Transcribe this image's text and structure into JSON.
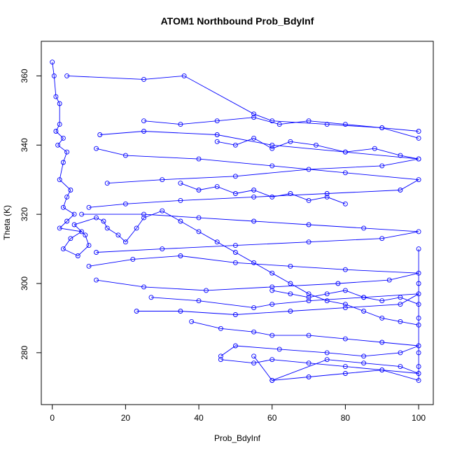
{
  "chart_data": {
    "type": "line",
    "title": "ATOM1 Northbound Prob_BdyInf",
    "xlabel": "Prob_BdyInf",
    "ylabel": "Theta (K)",
    "xlim": [
      -3,
      104
    ],
    "ylim": [
      265,
      370
    ],
    "xticks": [
      0,
      20,
      40,
      60,
      80,
      100
    ],
    "yticks": [
      280,
      300,
      320,
      340,
      360
    ],
    "grid": false,
    "legend": "none",
    "marker": "open-circle",
    "color": "#0000ff",
    "series": [
      {
        "x": [
          0,
          0.5,
          1,
          2,
          2,
          1,
          3,
          1.5,
          4,
          3,
          2,
          5,
          4,
          3,
          6,
          4,
          2,
          8,
          5,
          3,
          7,
          10,
          9,
          6,
          12,
          14,
          15,
          18,
          20,
          23,
          25,
          30,
          35,
          40,
          45,
          50,
          55,
          60,
          65,
          70,
          75,
          80,
          85,
          90,
          95,
          100
        ],
        "y": [
          364,
          360,
          354,
          352,
          346,
          344,
          342,
          340,
          338,
          335,
          330,
          327,
          325,
          322,
          320,
          318,
          316,
          315,
          313,
          310,
          308,
          311,
          314,
          317,
          319,
          318,
          316,
          314,
          312,
          316,
          319,
          321,
          318,
          315,
          312,
          309,
          306,
          303,
          300,
          297,
          295,
          294,
          292,
          290,
          289,
          288
        ]
      },
      {
        "x": [
          4,
          25,
          36,
          55,
          60,
          75,
          90,
          100
        ],
        "y": [
          360,
          359,
          360,
          349,
          347,
          346,
          345,
          342
        ]
      },
      {
        "x": [
          13,
          25,
          45,
          60,
          80,
          100,
          90,
          70,
          50,
          30,
          15
        ],
        "y": [
          343,
          344,
          343,
          340,
          338,
          336,
          334,
          333,
          331,
          330,
          329
        ]
      },
      {
        "x": [
          12,
          20,
          40,
          60,
          80,
          100,
          95,
          75,
          55,
          35,
          20,
          10
        ],
        "y": [
          339,
          337,
          336,
          334,
          332,
          330,
          327,
          326,
          325,
          324,
          323,
          322
        ]
      },
      {
        "x": [
          8,
          25,
          40,
          55,
          70,
          85,
          100,
          90,
          70,
          50,
          30,
          12
        ],
        "y": [
          320,
          320,
          319,
          318,
          317,
          316,
          315,
          313,
          312,
          311,
          310,
          309
        ]
      },
      {
        "x": [
          10,
          22,
          35,
          50,
          65,
          80,
          100,
          92,
          78,
          60,
          42,
          25,
          12
        ],
        "y": [
          305,
          307,
          308,
          306,
          305,
          304,
          303,
          301,
          300,
          299,
          298,
          299,
          301
        ]
      },
      {
        "x": [
          27,
          40,
          55,
          60,
          70,
          85,
          100,
          95,
          80,
          65,
          50,
          35,
          23
        ],
        "y": [
          296,
          295,
          293,
          294,
          295,
          296,
          297,
          294,
          293,
          292,
          291,
          292,
          292
        ]
      },
      {
        "x": [
          38,
          46,
          55,
          60,
          70,
          80,
          90,
          100,
          95,
          85,
          75,
          62,
          50,
          46
        ],
        "y": [
          289,
          287,
          286,
          285,
          285,
          284,
          283,
          282,
          280,
          279,
          280,
          281,
          282,
          279
        ]
      },
      {
        "x": [
          46,
          55,
          60,
          70,
          80,
          90,
          100,
          95,
          85,
          75,
          60,
          55
        ],
        "y": [
          278,
          277,
          278,
          277,
          276,
          275,
          274,
          276,
          277,
          278,
          272,
          279
        ]
      },
      {
        "x": [
          60,
          70,
          80,
          90,
          100,
          100,
          100,
          100,
          100,
          100
        ],
        "y": [
          272,
          273,
          274,
          275,
          272,
          276,
          280,
          290,
          300,
          310
        ]
      },
      {
        "x": [
          25,
          35,
          45,
          55,
          62,
          70,
          80,
          90,
          100
        ],
        "y": [
          347,
          346,
          347,
          348,
          346,
          347,
          346,
          345,
          344
        ]
      },
      {
        "x": [
          45,
          50,
          55,
          60,
          65,
          72,
          80,
          88,
          95,
          100
        ],
        "y": [
          341,
          340,
          342,
          339,
          341,
          340,
          338,
          339,
          337,
          336
        ]
      },
      {
        "x": [
          35,
          40,
          45,
          50,
          55,
          60,
          65,
          70,
          75,
          80
        ],
        "y": [
          329,
          327,
          328,
          326,
          327,
          325,
          326,
          324,
          325,
          323
        ]
      },
      {
        "x": [
          60,
          65,
          70,
          75,
          80,
          85,
          90,
          95,
          100
        ],
        "y": [
          298,
          297,
          296,
          297,
          298,
          296,
          295,
          296,
          294
        ]
      }
    ]
  }
}
